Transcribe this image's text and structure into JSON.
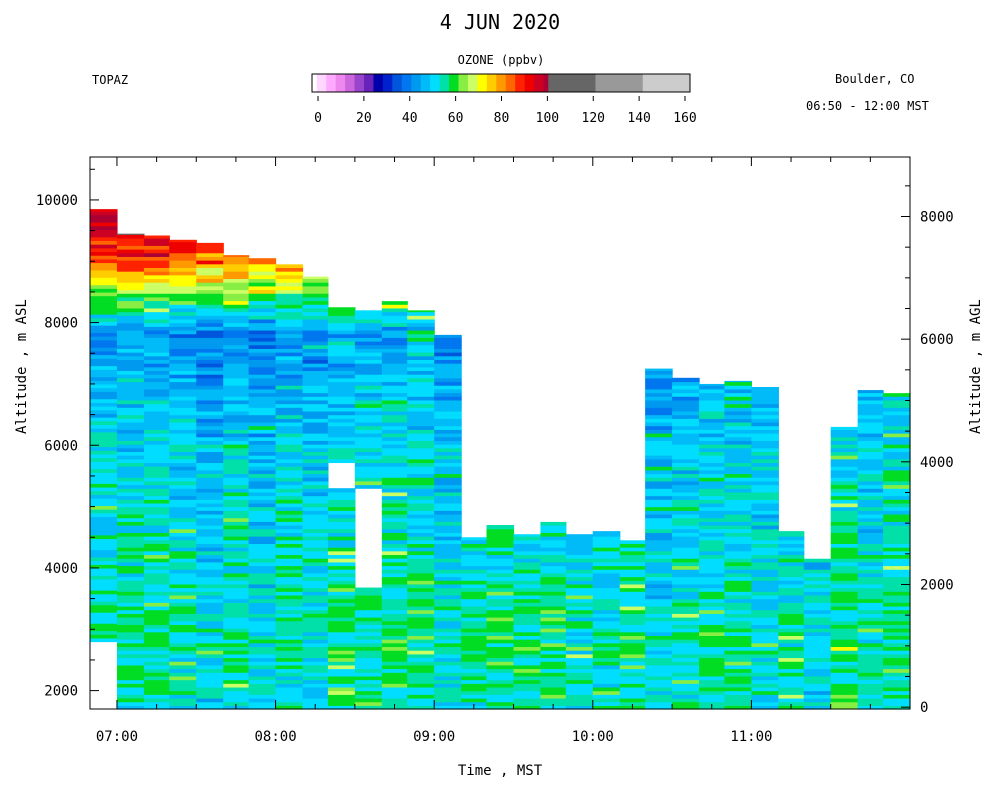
{
  "chart_data": {
    "type": "heatmap",
    "title": "4 JUN 2020",
    "instrument": "TOPAZ",
    "location": "Boulder, CO",
    "time_range": "06:50 - 12:00 MST",
    "xlabel": "Time , MST",
    "ylabel_left": "Altitude , m ASL",
    "ylabel_right": "Altitude , m AGL",
    "colorbar": {
      "label": "OZONE (ppbv)",
      "ticks": [
        "0",
        "20",
        "40",
        "60",
        "80",
        "100",
        "120",
        "140",
        "160"
      ],
      "range": [
        0,
        160
      ],
      "bins": [
        {
          "from": 0,
          "to": 2,
          "color": "#ffffff"
        },
        {
          "from": 2,
          "to": 6,
          "color": "#ffd6ff"
        },
        {
          "from": 6,
          "to": 10,
          "color": "#ffaaff"
        },
        {
          "from": 10,
          "to": 14,
          "color": "#ee88ee"
        },
        {
          "from": 14,
          "to": 18,
          "color": "#cc66dd"
        },
        {
          "from": 18,
          "to": 22,
          "color": "#9944cc"
        },
        {
          "from": 22,
          "to": 26,
          "color": "#6622bb"
        },
        {
          "from": 26,
          "to": 30,
          "color": "#0000aa"
        },
        {
          "from": 30,
          "to": 34,
          "color": "#0022cc"
        },
        {
          "from": 34,
          "to": 38,
          "color": "#0055dd"
        },
        {
          "from": 38,
          "to": 42,
          "color": "#0077ee"
        },
        {
          "from": 42,
          "to": 46,
          "color": "#0099f0"
        },
        {
          "from": 46,
          "to": 50,
          "color": "#00bbf8"
        },
        {
          "from": 50,
          "to": 54,
          "color": "#00ddff"
        },
        {
          "from": 54,
          "to": 58,
          "color": "#00e0a8"
        },
        {
          "from": 58,
          "to": 62,
          "color": "#00dd22"
        },
        {
          "from": 62,
          "to": 66,
          "color": "#88ee44"
        },
        {
          "from": 66,
          "to": 70,
          "color": "#ccff66"
        },
        {
          "from": 70,
          "to": 74,
          "color": "#ffff00"
        },
        {
          "from": 74,
          "to": 78,
          "color": "#ffcc00"
        },
        {
          "from": 78,
          "to": 82,
          "color": "#ff9900"
        },
        {
          "from": 82,
          "to": 86,
          "color": "#ff6600"
        },
        {
          "from": 86,
          "to": 90,
          "color": "#ff2200"
        },
        {
          "from": 90,
          "to": 94,
          "color": "#ee0000"
        },
        {
          "from": 94,
          "to": 98,
          "color": "#cc0022"
        },
        {
          "from": 98,
          "to": 100,
          "color": "#aa0033"
        },
        {
          "from": 100,
          "to": 120,
          "color": "#666666"
        },
        {
          "from": 120,
          "to": 140,
          "color": "#999999"
        },
        {
          "from": 140,
          "to": 160,
          "color": "#cccccc"
        }
      ]
    },
    "x_axis": {
      "unit": "hour_MST",
      "range": [
        6.83,
        12.0
      ],
      "ticks": [
        {
          "v": 7,
          "label": "07:00"
        },
        {
          "v": 8,
          "label": "08:00"
        },
        {
          "v": 9,
          "label": "09:00"
        },
        {
          "v": 10,
          "label": "10:00"
        },
        {
          "v": 11,
          "label": "11:00"
        }
      ]
    },
    "y_axis_left": {
      "range": [
        1700,
        10700
      ],
      "ticks": [
        {
          "v": 2000,
          "label": "2000"
        },
        {
          "v": 4000,
          "label": "4000"
        },
        {
          "v": 6000,
          "label": "6000"
        },
        {
          "v": 8000,
          "label": "8000"
        },
        {
          "v": 10000,
          "label": "10000"
        }
      ]
    },
    "y_axis_right": {
      "range": [
        -30,
        8970
      ],
      "ticks": [
        {
          "v": 0,
          "label": "0"
        },
        {
          "v": 2000,
          "label": "2000"
        },
        {
          "v": 4000,
          "label": "4000"
        },
        {
          "v": 6000,
          "label": "6000"
        },
        {
          "v": 8000,
          "label": "8000"
        }
      ]
    },
    "profiles": [
      {
        "t0": 6.83,
        "t1": 7.0,
        "bottom": 2800,
        "top": 9850
      },
      {
        "t0": 7.0,
        "t1": 7.17,
        "bottom": 1700,
        "top": 9450
      },
      {
        "t0": 7.17,
        "t1": 7.33,
        "bottom": 1700,
        "top": 9420
      },
      {
        "t0": 7.33,
        "t1": 7.5,
        "bottom": 1700,
        "top": 9350
      },
      {
        "t0": 7.5,
        "t1": 7.67,
        "bottom": 1700,
        "top": 9300
      },
      {
        "t0": 7.67,
        "t1": 7.83,
        "bottom": 1700,
        "top": 9100
      },
      {
        "t0": 7.83,
        "t1": 8.0,
        "bottom": 1700,
        "top": 9050
      },
      {
        "t0": 8.0,
        "t1": 8.17,
        "bottom": 1700,
        "top": 8950
      },
      {
        "t0": 8.17,
        "t1": 8.33,
        "bottom": 1700,
        "top": 8750
      },
      {
        "t0": 8.33,
        "t1": 8.5,
        "bottom": 1700,
        "top": 8250,
        "gap": [
          5350,
          5700
        ]
      },
      {
        "t0": 8.5,
        "t1": 8.67,
        "bottom": 1700,
        "top": 8200,
        "gap": [
          3700,
          5250
        ]
      },
      {
        "t0": 8.67,
        "t1": 8.83,
        "bottom": 1700,
        "top": 8350
      },
      {
        "t0": 8.83,
        "t1": 9.0,
        "bottom": 1700,
        "top": 8200
      },
      {
        "t0": 9.0,
        "t1": 9.17,
        "bottom": 1700,
        "top": 7800
      },
      {
        "t0": 9.17,
        "t1": 9.33,
        "bottom": 1700,
        "top": 4500
      },
      {
        "t0": 9.33,
        "t1": 9.5,
        "bottom": 1700,
        "top": 4700
      },
      {
        "t0": 9.5,
        "t1": 9.67,
        "bottom": 1700,
        "top": 4550
      },
      {
        "t0": 9.67,
        "t1": 9.83,
        "bottom": 1700,
        "top": 4750
      },
      {
        "t0": 9.83,
        "t1": 10.0,
        "bottom": 1700,
        "top": 4550
      },
      {
        "t0": 10.0,
        "t1": 10.17,
        "bottom": 1700,
        "top": 4600
      },
      {
        "t0": 10.17,
        "t1": 10.33,
        "bottom": 1700,
        "top": 4450
      },
      {
        "t0": 10.33,
        "t1": 10.5,
        "bottom": 1700,
        "top": 7250
      },
      {
        "t0": 10.5,
        "t1": 10.67,
        "bottom": 1700,
        "top": 7100
      },
      {
        "t0": 10.67,
        "t1": 10.83,
        "bottom": 1700,
        "top": 7000
      },
      {
        "t0": 10.83,
        "t1": 11.0,
        "bottom": 1700,
        "top": 7050
      },
      {
        "t0": 11.0,
        "t1": 11.17,
        "bottom": 1700,
        "top": 6950
      },
      {
        "t0": 11.17,
        "t1": 11.33,
        "bottom": 1700,
        "top": 4600
      },
      {
        "t0": 11.33,
        "t1": 11.5,
        "bottom": 1700,
        "top": 4150
      },
      {
        "t0": 11.5,
        "t1": 11.67,
        "bottom": 1700,
        "top": 6300
      },
      {
        "t0": 11.67,
        "t1": 11.83,
        "bottom": 1700,
        "top": 6900
      },
      {
        "t0": 11.83,
        "t1": 12.0,
        "bottom": 1700,
        "top": 6850
      }
    ],
    "ozone_profile_ppbv": [
      {
        "alt": 1700,
        "ozone": 54
      },
      {
        "alt": 3000,
        "ozone": 55
      },
      {
        "alt": 4500,
        "ozone": 52
      },
      {
        "alt": 6000,
        "ozone": 50
      },
      {
        "alt": 7000,
        "ozone": 47
      },
      {
        "alt": 7800,
        "ozone": 42
      },
      {
        "alt": 8400,
        "ozone": 60
      },
      {
        "alt": 8800,
        "ozone": 75
      },
      {
        "alt": 9200,
        "ozone": 88
      },
      {
        "alt": 9850,
        "ozone": 96
      }
    ]
  }
}
